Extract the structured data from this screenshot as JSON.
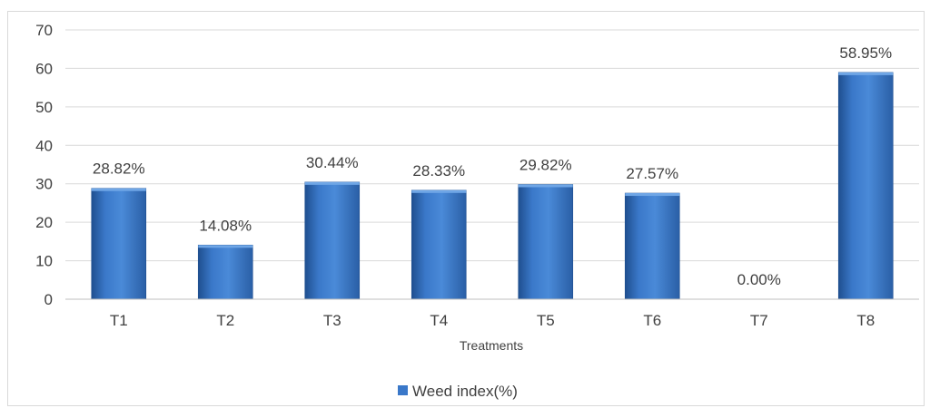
{
  "chart_data": {
    "type": "bar",
    "categories": [
      "T1",
      "T2",
      "T3",
      "T4",
      "T5",
      "T6",
      "T7",
      "T8"
    ],
    "series": [
      {
        "name": "Weed index(%)",
        "values": [
          28.82,
          14.08,
          30.44,
          28.33,
          29.82,
          27.57,
          0.0,
          58.95
        ],
        "data_labels": [
          "28.82%",
          "14.08%",
          "30.44%",
          "28.33%",
          "29.82%",
          "27.57%",
          "0.00%",
          "58.95%"
        ],
        "color": "#3a78c9"
      }
    ],
    "title": "",
    "xlabel": "Treatments",
    "ylabel": "",
    "ylim": [
      0,
      70
    ],
    "yticks": [
      0,
      10,
      20,
      30,
      40,
      50,
      60,
      70
    ],
    "grid": true,
    "legend_position": "bottom"
  }
}
